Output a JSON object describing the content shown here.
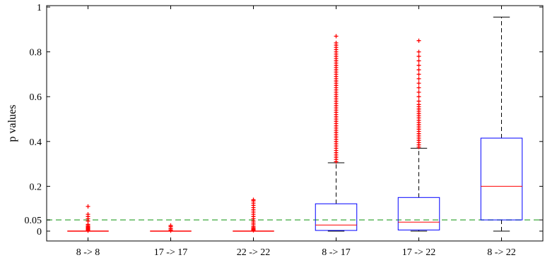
{
  "chart_data": {
    "type": "box",
    "ylabel": "p values",
    "ylim": [
      0,
      1
    ],
    "yticks": [
      0,
      0.05,
      0.2,
      0.4,
      0.6,
      0.8,
      1
    ],
    "ytick_labels": [
      "0",
      "0.05",
      "0.2",
      "0.4",
      "0.6",
      "0.8",
      "1"
    ],
    "reference_line": {
      "y": 0.05,
      "style": "dashed",
      "color": "#5cb85c"
    },
    "colors": {
      "box": "#0000ff",
      "median": "#ff0000",
      "whisker": "#000000",
      "outlier": "#ff0000",
      "axis": "#000000"
    },
    "categories": [
      "8 -> 8",
      "17 -> 17",
      "22 -> 22",
      "8 -> 17",
      "17 -> 22",
      "8 -> 22"
    ],
    "boxes": [
      {
        "q1": 0,
        "median": 0,
        "q3": 0,
        "whisker_low": 0,
        "whisker_high": 0,
        "outliers": [
          0.002,
          0.004,
          0.006,
          0.008,
          0.01,
          0.012,
          0.015,
          0.018,
          0.02,
          0.025,
          0.03,
          0.045,
          0.055,
          0.065,
          0.075,
          0.11
        ]
      },
      {
        "q1": 0,
        "median": 0,
        "q3": 0,
        "whisker_low": 0,
        "whisker_high": 0,
        "outliers": [
          0.002,
          0.006,
          0.012,
          0.02,
          0.025
        ]
      },
      {
        "q1": 0,
        "median": 0,
        "q3": 0,
        "whisker_low": 0,
        "whisker_high": 0,
        "outliers": [
          0.003,
          0.006,
          0.01,
          0.015,
          0.02,
          0.028,
          0.036,
          0.045,
          0.055,
          0.065,
          0.075,
          0.085,
          0.095,
          0.105,
          0.115,
          0.125,
          0.135,
          0.14
        ]
      },
      {
        "q1": 0.003,
        "median": 0.027,
        "q3": 0.122,
        "whisker_low": 0,
        "whisker_high": 0.305,
        "outliers": [
          0.31,
          0.32,
          0.33,
          0.34,
          0.35,
          0.36,
          0.37,
          0.38,
          0.39,
          0.4,
          0.41,
          0.42,
          0.43,
          0.44,
          0.45,
          0.46,
          0.47,
          0.48,
          0.49,
          0.5,
          0.51,
          0.52,
          0.53,
          0.54,
          0.55,
          0.56,
          0.57,
          0.58,
          0.59,
          0.6,
          0.61,
          0.62,
          0.63,
          0.64,
          0.65,
          0.66,
          0.67,
          0.68,
          0.69,
          0.7,
          0.71,
          0.72,
          0.73,
          0.74,
          0.75,
          0.76,
          0.77,
          0.78,
          0.79,
          0.8,
          0.81,
          0.82,
          0.83,
          0.84,
          0.87
        ]
      },
      {
        "q1": 0.005,
        "median": 0.04,
        "q3": 0.15,
        "whisker_low": 0,
        "whisker_high": 0.37,
        "outliers": [
          0.375,
          0.385,
          0.395,
          0.405,
          0.415,
          0.425,
          0.435,
          0.445,
          0.455,
          0.465,
          0.475,
          0.485,
          0.495,
          0.505,
          0.515,
          0.525,
          0.535,
          0.545,
          0.555,
          0.565,
          0.58,
          0.6,
          0.62,
          0.64,
          0.66,
          0.68,
          0.7,
          0.72,
          0.74,
          0.76,
          0.78,
          0.8,
          0.85
        ]
      },
      {
        "q1": 0.05,
        "median": 0.2,
        "q3": 0.415,
        "whisker_low": 0,
        "whisker_high": 0.955,
        "outliers": []
      }
    ]
  }
}
